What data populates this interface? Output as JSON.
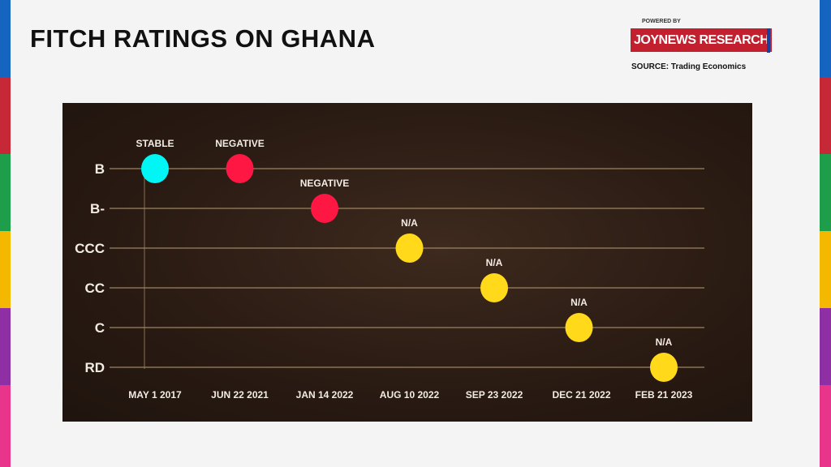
{
  "header": {
    "title": "FITCH RATINGS ON GHANA",
    "powered_by": "POWERED BY",
    "brand": "JOYNEWS RESEARCH",
    "source": "SOURCE: Trading Economics"
  },
  "colors": {
    "stable": "#00f5f5",
    "negative": "#ff1744",
    "na": "#ffd91a",
    "strips": [
      "#1565c0",
      "#c62838",
      "#1e9e4a",
      "#f5b800",
      "#8e2fa3",
      "#e8348a"
    ]
  },
  "chart_data": {
    "type": "scatter",
    "title": "FITCH RATINGS ON GHANA",
    "y_categories": [
      "B",
      "B-",
      "CCC",
      "CC",
      "C",
      "RD"
    ],
    "categories": [
      "MAY 1 2017",
      "JUN 22 2021",
      "JAN 14 2022",
      "AUG 10 2022",
      "SEP 23 2022",
      "DEC 21 2022",
      "FEB 21 2023"
    ],
    "ratings": [
      "B",
      "B",
      "B-",
      "CCC",
      "CC",
      "C",
      "RD"
    ],
    "outlooks": [
      "STABLE",
      "NEGATIVE",
      "NEGATIVE",
      "N/A",
      "N/A",
      "N/A",
      "N/A"
    ],
    "grid": true
  }
}
